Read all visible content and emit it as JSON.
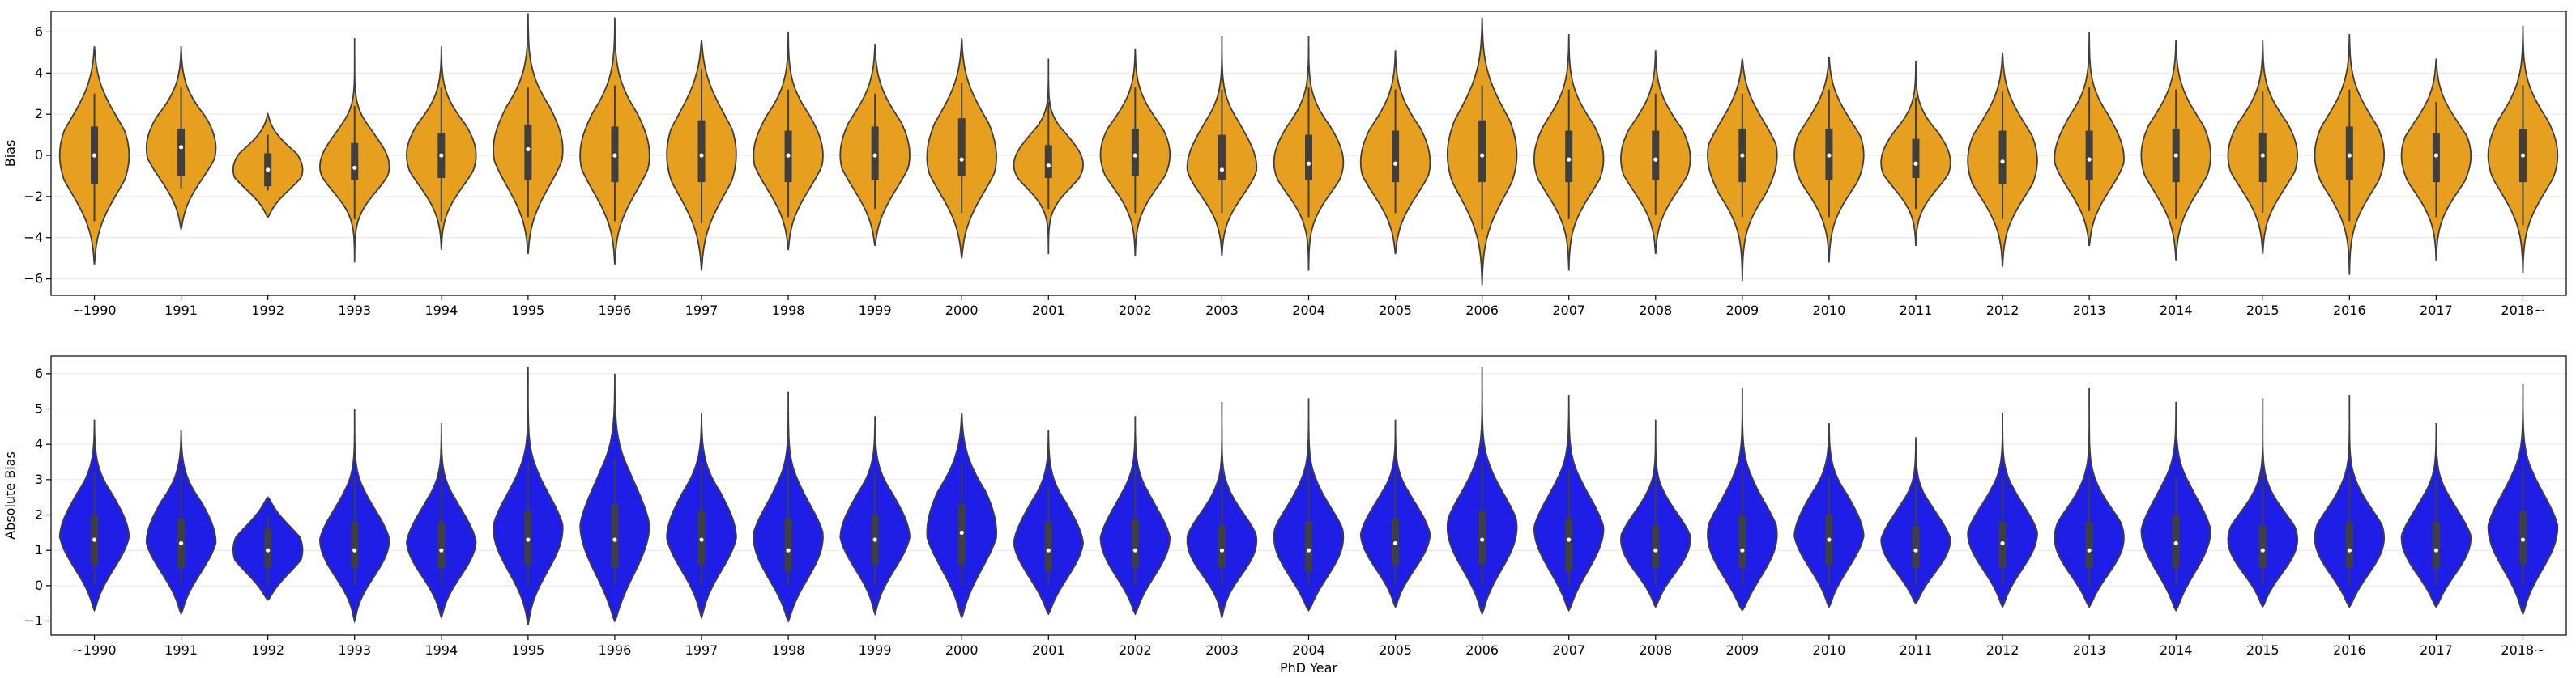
{
  "chart_data": [
    {
      "type": "violin",
      "ylabel": "Bias",
      "xlabel": "",
      "ylim": [
        -6.8,
        7.0
      ],
      "yticks": [
        -6,
        -4,
        -2,
        0,
        2,
        4,
        6
      ],
      "grid": "horizontal",
      "color": "#e69f1e",
      "categories": [
        "~1990",
        "1991",
        "1992",
        "1993",
        "1994",
        "1995",
        "1996",
        "1997",
        "1998",
        "1999",
        "2000",
        "2001",
        "2002",
        "2003",
        "2004",
        "2005",
        "2006",
        "2007",
        "2008",
        "2009",
        "2010",
        "2011",
        "2012",
        "2013",
        "2014",
        "2015",
        "2016",
        "2017",
        "2018~"
      ],
      "min": [
        -5.3,
        -3.6,
        -3.0,
        -5.2,
        -4.6,
        -4.8,
        -5.3,
        -5.6,
        -4.6,
        -4.4,
        -5.0,
        -4.8,
        -4.9,
        -4.9,
        -5.6,
        -4.8,
        -6.3,
        -5.6,
        -4.8,
        -6.1,
        -5.2,
        -4.4,
        -5.4,
        -4.4,
        -5.1,
        -4.8,
        -5.8,
        -5.1,
        -5.7
      ],
      "max": [
        5.3,
        5.3,
        2.0,
        5.7,
        5.3,
        6.9,
        6.7,
        5.6,
        6.0,
        5.4,
        5.7,
        4.7,
        5.2,
        5.8,
        5.8,
        5.1,
        6.7,
        5.9,
        5.1,
        4.7,
        4.8,
        4.6,
        5.0,
        6.0,
        5.6,
        5.6,
        5.9,
        4.7,
        6.3
      ],
      "whisker_low": [
        -3.2,
        -1.6,
        -1.7,
        -3.1,
        -3.2,
        -3.0,
        -3.2,
        -3.3,
        -3.0,
        -2.6,
        -2.8,
        -2.6,
        -2.8,
        -2.8,
        -3.0,
        -2.8,
        -3.6,
        -3.1,
        -2.9,
        -3.0,
        -3.0,
        -2.6,
        -3.1,
        -2.7,
        -3.1,
        -2.8,
        -3.2,
        -3.0,
        -3.4
      ],
      "whisker_high": [
        3.0,
        3.3,
        1.0,
        2.4,
        3.3,
        3.3,
        3.4,
        4.2,
        3.2,
        3.0,
        3.5,
        2.6,
        3.3,
        3.2,
        3.3,
        3.2,
        3.4,
        3.2,
        3.0,
        3.0,
        3.2,
        2.8,
        3.1,
        3.3,
        3.2,
        3.1,
        3.2,
        2.6,
        3.4
      ],
      "q1": [
        -1.4,
        -1.0,
        -1.5,
        -1.2,
        -1.1,
        -1.2,
        -1.3,
        -1.3,
        -1.3,
        -1.2,
        -1.0,
        -1.1,
        -1.0,
        -1.2,
        -1.2,
        -1.3,
        -1.3,
        -1.3,
        -1.2,
        -1.3,
        -1.2,
        -1.1,
        -1.4,
        -1.2,
        -1.3,
        -1.3,
        -1.2,
        -1.3,
        -1.3
      ],
      "q3": [
        1.4,
        1.3,
        0.1,
        0.6,
        1.1,
        1.5,
        1.4,
        1.7,
        1.2,
        1.4,
        1.8,
        0.5,
        1.3,
        1.0,
        1.0,
        1.2,
        1.7,
        1.2,
        1.2,
        1.3,
        1.3,
        0.8,
        1.2,
        1.2,
        1.3,
        1.1,
        1.4,
        1.1,
        1.3
      ],
      "median": [
        0.0,
        0.4,
        -0.7,
        -0.6,
        0.0,
        0.3,
        0.0,
        0.0,
        0.0,
        0.0,
        -0.2,
        -0.5,
        0.0,
        -0.7,
        -0.4,
        -0.4,
        0.0,
        -0.2,
        -0.2,
        0.0,
        0.0,
        -0.4,
        -0.3,
        -0.2,
        0.0,
        0.0,
        0.0,
        0.0,
        0.0
      ]
    },
    {
      "type": "violin",
      "ylabel": "Absolute Bias",
      "xlabel": "PhD Year",
      "ylim": [
        -1.4,
        6.5
      ],
      "yticks": [
        -1,
        0,
        1,
        2,
        3,
        4,
        5,
        6
      ],
      "grid": "horizontal",
      "color": "#1e1ee6",
      "categories": [
        "~1990",
        "1991",
        "1992",
        "1993",
        "1994",
        "1995",
        "1996",
        "1997",
        "1998",
        "1999",
        "2000",
        "2001",
        "2002",
        "2003",
        "2004",
        "2005",
        "2006",
        "2007",
        "2008",
        "2009",
        "2010",
        "2011",
        "2012",
        "2013",
        "2014",
        "2015",
        "2016",
        "2017",
        "2018~"
      ],
      "min": [
        -0.7,
        -0.8,
        -0.4,
        -1.0,
        -0.9,
        -1.1,
        -1.0,
        -0.9,
        -1.0,
        -0.8,
        -0.9,
        -0.8,
        -0.8,
        -0.9,
        -0.7,
        -0.6,
        -0.8,
        -0.7,
        -0.6,
        -0.7,
        -0.6,
        -0.5,
        -0.6,
        -0.6,
        -0.7,
        -0.6,
        -0.6,
        -0.6,
        -0.8
      ],
      "max": [
        4.7,
        4.4,
        2.5,
        5.0,
        4.6,
        6.2,
        6.0,
        4.9,
        5.5,
        4.8,
        4.9,
        4.4,
        4.8,
        5.2,
        5.3,
        4.7,
        6.2,
        5.4,
        4.7,
        5.6,
        4.6,
        4.2,
        4.9,
        5.6,
        5.2,
        5.3,
        5.4,
        4.6,
        5.7
      ],
      "whisker_low": [
        0.0,
        0.0,
        0.0,
        0.0,
        0.0,
        0.0,
        0.0,
        0.0,
        0.0,
        0.0,
        0.0,
        0.0,
        0.0,
        0.0,
        0.0,
        0.0,
        0.0,
        0.0,
        0.0,
        0.0,
        0.0,
        0.0,
        0.0,
        0.0,
        0.0,
        0.0,
        0.0,
        0.0,
        0.0
      ],
      "whisker_high": [
        3.2,
        3.3,
        2.0,
        3.1,
        3.3,
        3.5,
        3.6,
        3.5,
        3.4,
        3.2,
        3.5,
        2.8,
        3.3,
        3.1,
        3.3,
        3.2,
        3.5,
        3.3,
        3.1,
        3.3,
        3.1,
        2.9,
        3.1,
        3.1,
        3.1,
        3.2,
        3.2,
        3.0,
        3.4
      ],
      "q1": [
        0.6,
        0.5,
        0.5,
        0.5,
        0.5,
        0.6,
        0.5,
        0.6,
        0.4,
        0.6,
        0.6,
        0.4,
        0.5,
        0.5,
        0.4,
        0.6,
        0.6,
        0.4,
        0.5,
        0.5,
        0.6,
        0.5,
        0.5,
        0.5,
        0.5,
        0.5,
        0.5,
        0.5,
        0.6
      ],
      "q3": [
        2.0,
        1.9,
        1.6,
        1.8,
        1.8,
        2.1,
        2.3,
        2.1,
        1.9,
        2.0,
        2.3,
        1.8,
        1.9,
        1.7,
        1.8,
        1.9,
        2.1,
        1.9,
        1.7,
        2.0,
        2.0,
        1.7,
        1.8,
        1.8,
        2.0,
        1.7,
        1.8,
        1.8,
        2.1
      ],
      "median": [
        1.3,
        1.2,
        1.0,
        1.0,
        1.0,
        1.3,
        1.3,
        1.3,
        1.0,
        1.3,
        1.5,
        1.0,
        1.0,
        1.0,
        1.0,
        1.2,
        1.3,
        1.3,
        1.0,
        1.0,
        1.3,
        1.0,
        1.2,
        1.0,
        1.2,
        1.0,
        1.0,
        1.0,
        1.3
      ]
    }
  ]
}
